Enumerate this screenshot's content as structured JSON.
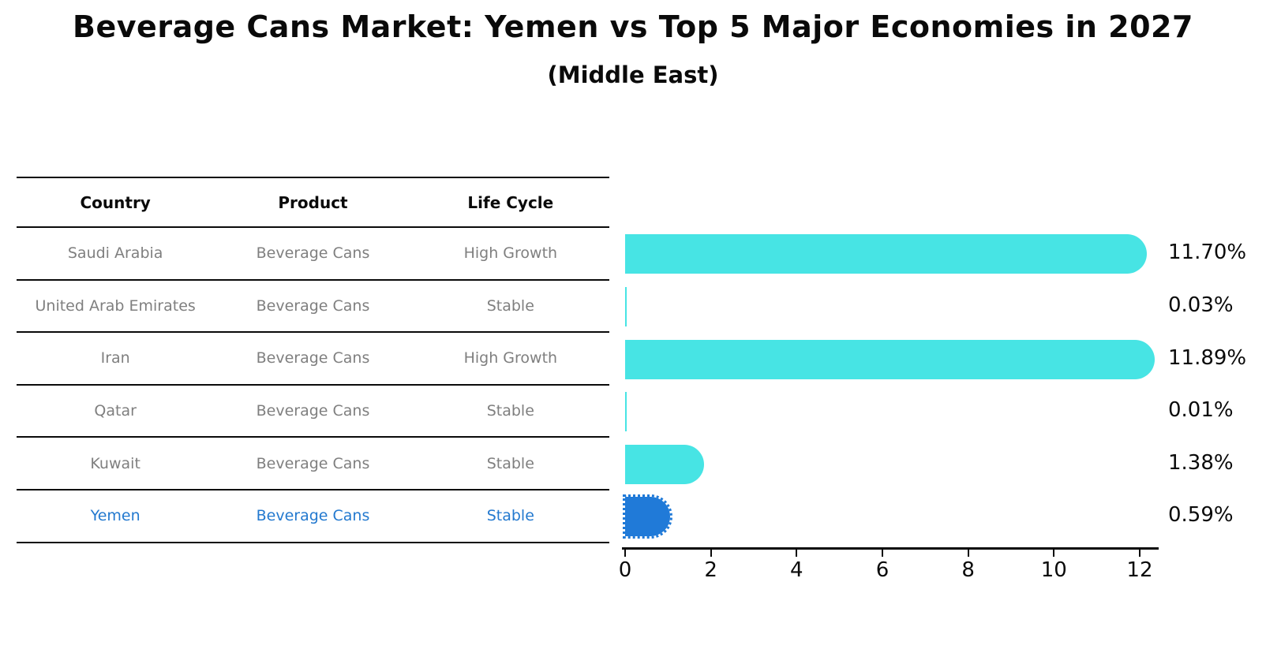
{
  "title": "Beverage Cans Market: Yemen vs Top 5 Major Economies in 2027",
  "subtitle": "(Middle East)",
  "table": {
    "headers": [
      "Country",
      "Product",
      "Life Cycle"
    ],
    "rows": [
      {
        "country": "Saudi Arabia",
        "product": "Beverage Cans",
        "life_cycle": "High Growth",
        "highlighted": false
      },
      {
        "country": "United Arab Emirates",
        "product": "Beverage Cans",
        "life_cycle": "Stable",
        "highlighted": false
      },
      {
        "country": "Iran",
        "product": "Beverage Cans",
        "life_cycle": "High Growth",
        "highlighted": false
      },
      {
        "country": "Qatar",
        "product": "Beverage Cans",
        "life_cycle": "Stable",
        "highlighted": false
      },
      {
        "country": "Kuwait",
        "product": "Beverage Cans",
        "life_cycle": "Stable",
        "highlighted": false
      },
      {
        "country": "Yemen",
        "product": "Beverage Cans",
        "life_cycle": "Stable",
        "highlighted": true
      }
    ]
  },
  "chart_data": {
    "type": "bar",
    "orientation": "horizontal",
    "title": "Beverage Cans Market: Yemen vs Top 5 Major Economies in 2027 (Middle East)",
    "categories": [
      "Saudi Arabia",
      "United Arab Emirates",
      "Iran",
      "Qatar",
      "Kuwait",
      "Yemen"
    ],
    "values": [
      11.7,
      0.03,
      11.89,
      0.01,
      1.38,
      0.59
    ],
    "value_labels": [
      "11.70%",
      "0.03%",
      "11.89%",
      "0.01%",
      "1.38%",
      "0.59%"
    ],
    "xlim": [
      0,
      12.5
    ],
    "xticks": [
      0,
      2,
      4,
      6,
      8,
      10,
      12
    ],
    "grid": false,
    "legend": false,
    "highlight_index": 5
  },
  "colors": {
    "bar": "#47e4e4",
    "highlight_bar": "#207ad8",
    "highlight_text": "#2379cf",
    "table_text": "#7f7f7f",
    "axis_and_text": "#0a0a0a"
  }
}
